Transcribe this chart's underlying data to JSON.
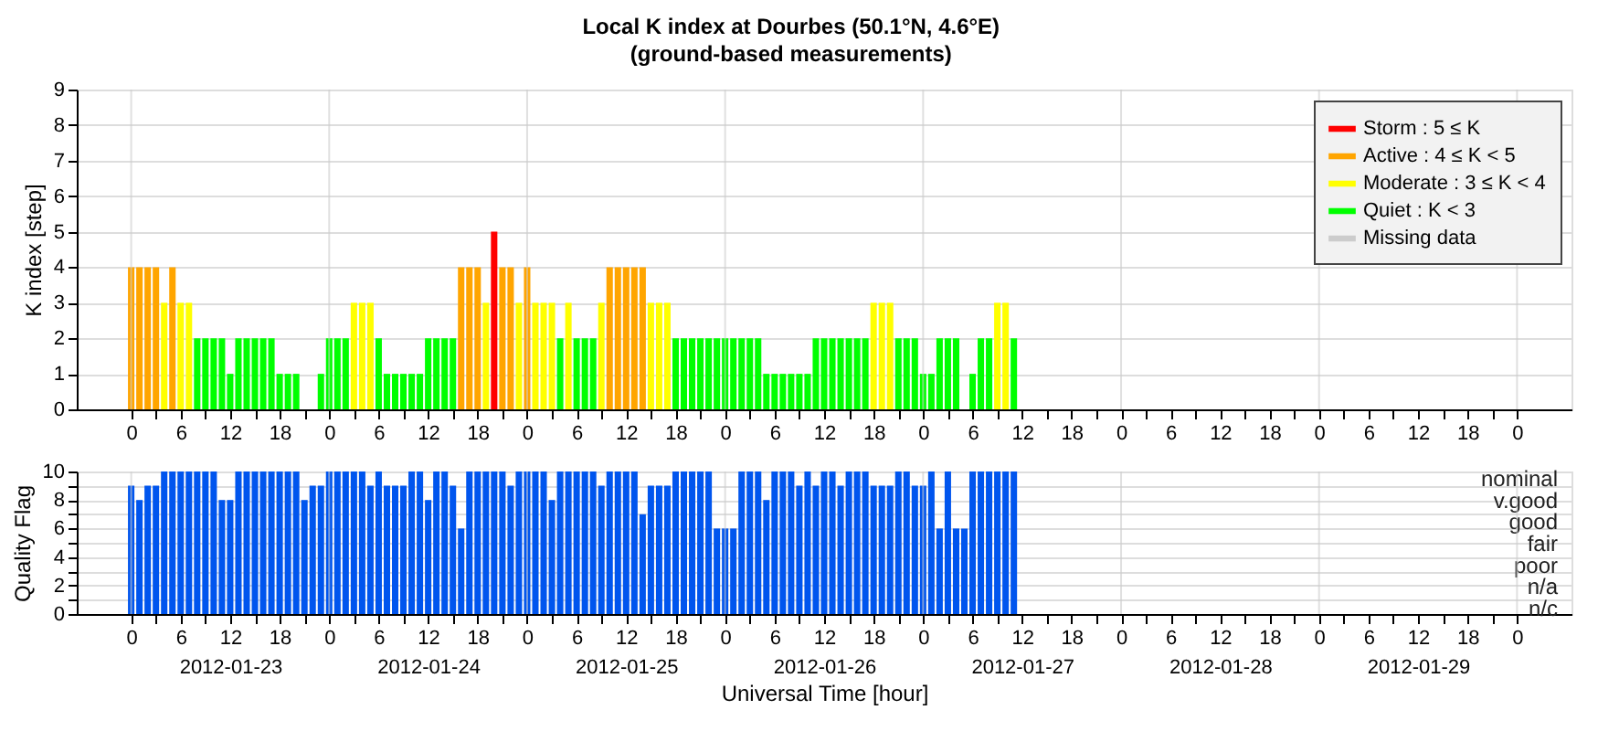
{
  "chart_data": [
    {
      "type": "bar",
      "title": "Local K index at Dourbes (50.1°N, 4.6°E)",
      "subtitle": "(ground-based measurements)",
      "ylabel": "K index [step]",
      "series": [
        {
          "name": "Storm : 5 ≤ K",
          "color": "#ff0000",
          "x": [
            "2012-01-24T20:00"
          ],
          "values": [
            5
          ]
        },
        {
          "name": "Active : 4 ≤ K < 5",
          "color": "#ffa500",
          "x": [
            "2012-01-23T00:00",
            "2012-01-23T01:00",
            "2012-01-23T02:00",
            "2012-01-23T03:00",
            "2012-01-23T05:00",
            "2012-01-24T16:00",
            "2012-01-24T17:00",
            "2012-01-24T18:00",
            "2012-01-24T21:00",
            "2012-01-24T22:00",
            "2012-01-25T00:00",
            "2012-01-25T10:00",
            "2012-01-25T11:00",
            "2012-01-25T12:00",
            "2012-01-25T13:00",
            "2012-01-25T14:00"
          ],
          "values": [
            4,
            4,
            4,
            4,
            4,
            4,
            4,
            4,
            4,
            4,
            4,
            4,
            4,
            4,
            4,
            4
          ]
        },
        {
          "name": "Moderate : 3 ≤ K < 4",
          "color": "#ffff00",
          "x": [
            "2012-01-23T04:00",
            "2012-01-23T06:00",
            "2012-01-23T07:00",
            "2012-01-24T03:00",
            "2012-01-24T04:00",
            "2012-01-24T05:00",
            "2012-01-24T19:00",
            "2012-01-24T23:00",
            "2012-01-25T01:00",
            "2012-01-25T02:00",
            "2012-01-25T03:00",
            "2012-01-25T05:00",
            "2012-01-25T09:00",
            "2012-01-25T15:00",
            "2012-01-25T16:00",
            "2012-01-25T17:00",
            "2012-01-26T18:00",
            "2012-01-26T19:00",
            "2012-01-26T20:00",
            "2012-01-27T09:00",
            "2012-01-27T10:00"
          ],
          "values": [
            3,
            3,
            3,
            3,
            3,
            3,
            3,
            3,
            3,
            3,
            3,
            3,
            3,
            3,
            3,
            3,
            3,
            3,
            3,
            3,
            3
          ]
        },
        {
          "name": "Quiet : K < 3",
          "color": "#00ff00",
          "x": [
            "2012-01-23T08:00",
            "2012-01-23T09:00",
            "2012-01-23T10:00",
            "2012-01-23T11:00",
            "2012-01-23T12:00",
            "2012-01-23T13:00",
            "2012-01-23T14:00",
            "2012-01-23T15:00",
            "2012-01-23T16:00",
            "2012-01-23T17:00",
            "2012-01-23T18:00",
            "2012-01-23T19:00",
            "2012-01-23T20:00",
            "2012-01-23T21:00",
            "2012-01-23T22:00",
            "2012-01-23T23:00",
            "2012-01-24T00:00",
            "2012-01-24T01:00",
            "2012-01-24T02:00",
            "2012-01-24T06:00",
            "2012-01-24T07:00",
            "2012-01-24T08:00",
            "2012-01-24T09:00",
            "2012-01-24T10:00",
            "2012-01-24T11:00",
            "2012-01-24T12:00",
            "2012-01-24T13:00",
            "2012-01-24T14:00",
            "2012-01-24T15:00",
            "2012-01-25T04:00",
            "2012-01-25T06:00",
            "2012-01-25T07:00",
            "2012-01-25T08:00",
            "2012-01-25T18:00",
            "2012-01-25T19:00",
            "2012-01-25T20:00",
            "2012-01-25T21:00",
            "2012-01-25T22:00",
            "2012-01-25T23:00",
            "2012-01-26T00:00",
            "2012-01-26T01:00",
            "2012-01-26T02:00",
            "2012-01-26T03:00",
            "2012-01-26T04:00",
            "2012-01-26T05:00",
            "2012-01-26T06:00",
            "2012-01-26T07:00",
            "2012-01-26T08:00",
            "2012-01-26T09:00",
            "2012-01-26T10:00",
            "2012-01-26T11:00",
            "2012-01-26T12:00",
            "2012-01-26T13:00",
            "2012-01-26T14:00",
            "2012-01-26T15:00",
            "2012-01-26T16:00",
            "2012-01-26T17:00",
            "2012-01-26T21:00",
            "2012-01-26T22:00",
            "2012-01-26T23:00",
            "2012-01-27T00:00",
            "2012-01-27T01:00",
            "2012-01-27T02:00",
            "2012-01-27T03:00",
            "2012-01-27T04:00",
            "2012-01-27T05:00",
            "2012-01-27T06:00",
            "2012-01-27T07:00",
            "2012-01-27T08:00",
            "2012-01-27T11:00"
          ],
          "values": [
            2,
            2,
            2,
            2,
            1,
            2,
            2,
            2,
            2,
            2,
            1,
            1,
            1,
            0,
            0,
            1,
            2,
            2,
            2,
            2,
            1,
            1,
            1,
            1,
            1,
            2,
            2,
            2,
            2,
            2,
            2,
            2,
            2,
            2,
            2,
            2,
            2,
            2,
            2,
            2,
            2,
            2,
            2,
            2,
            1,
            1,
            1,
            1,
            1,
            1,
            2,
            2,
            2,
            2,
            2,
            2,
            2,
            2,
            2,
            2,
            1,
            1,
            2,
            2,
            2,
            0,
            1,
            2,
            2,
            2
          ]
        },
        {
          "name": "Missing data",
          "color": "#cccccc"
        }
      ],
      "xlim": [
        "2012-01-22T17:24",
        "2012-01-30T06:36"
      ],
      "xticks": [
        {
          "value": "2012-01-23T00:00",
          "label": "0"
        },
        {
          "value": "2012-01-23T03:00",
          "label": null
        },
        {
          "value": "2012-01-23T06:00",
          "label": "6"
        },
        {
          "value": "2012-01-23T09:00",
          "label": null
        },
        {
          "value": "2012-01-23T12:00",
          "label": "12"
        },
        {
          "value": "2012-01-23T15:00",
          "label": null
        },
        {
          "value": "2012-01-23T18:00",
          "label": "18"
        },
        {
          "value": "2012-01-23T21:00",
          "label": null
        },
        {
          "value": "2012-01-24T00:00",
          "label": "0"
        },
        {
          "value": "2012-01-24T03:00",
          "label": null
        },
        {
          "value": "2012-01-24T06:00",
          "label": "6"
        },
        {
          "value": "2012-01-24T09:00",
          "label": null
        },
        {
          "value": "2012-01-24T12:00",
          "label": "12"
        },
        {
          "value": "2012-01-24T15:00",
          "label": null
        },
        {
          "value": "2012-01-24T18:00",
          "label": "18"
        },
        {
          "value": "2012-01-24T21:00",
          "label": null
        },
        {
          "value": "2012-01-25T00:00",
          "label": "0"
        },
        {
          "value": "2012-01-25T03:00",
          "label": null
        },
        {
          "value": "2012-01-25T06:00",
          "label": "6"
        },
        {
          "value": "2012-01-25T09:00",
          "label": null
        },
        {
          "value": "2012-01-25T12:00",
          "label": "12"
        },
        {
          "value": "2012-01-25T15:00",
          "label": null
        },
        {
          "value": "2012-01-25T18:00",
          "label": "18"
        },
        {
          "value": "2012-01-25T21:00",
          "label": null
        },
        {
          "value": "2012-01-26T00:00",
          "label": "0"
        },
        {
          "value": "2012-01-26T03:00",
          "label": null
        },
        {
          "value": "2012-01-26T06:00",
          "label": "6"
        },
        {
          "value": "2012-01-26T09:00",
          "label": null
        },
        {
          "value": "2012-01-26T12:00",
          "label": "12"
        },
        {
          "value": "2012-01-26T15:00",
          "label": null
        },
        {
          "value": "2012-01-26T18:00",
          "label": "18"
        },
        {
          "value": "2012-01-26T21:00",
          "label": null
        },
        {
          "value": "2012-01-27T00:00",
          "label": "0"
        },
        {
          "value": "2012-01-27T03:00",
          "label": null
        },
        {
          "value": "2012-01-27T06:00",
          "label": "6"
        },
        {
          "value": "2012-01-27T09:00",
          "label": null
        },
        {
          "value": "2012-01-27T12:00",
          "label": "12"
        },
        {
          "value": "2012-01-27T15:00",
          "label": null
        },
        {
          "value": "2012-01-27T18:00",
          "label": "18"
        },
        {
          "value": "2012-01-27T21:00",
          "label": null
        },
        {
          "value": "2012-01-28T00:00",
          "label": "0"
        },
        {
          "value": "2012-01-28T03:00",
          "label": null
        },
        {
          "value": "2012-01-28T06:00",
          "label": "6"
        },
        {
          "value": "2012-01-28T09:00",
          "label": null
        },
        {
          "value": "2012-01-28T12:00",
          "label": "12"
        },
        {
          "value": "2012-01-28T15:00",
          "label": null
        },
        {
          "value": "2012-01-28T18:00",
          "label": "18"
        },
        {
          "value": "2012-01-28T21:00",
          "label": null
        },
        {
          "value": "2012-01-29T00:00",
          "label": "0"
        },
        {
          "value": "2012-01-29T03:00",
          "label": null
        },
        {
          "value": "2012-01-29T06:00",
          "label": "6"
        },
        {
          "value": "2012-01-29T09:00",
          "label": null
        },
        {
          "value": "2012-01-29T12:00",
          "label": "12"
        },
        {
          "value": "2012-01-29T15:00",
          "label": null
        },
        {
          "value": "2012-01-29T18:00",
          "label": "18"
        },
        {
          "value": "2012-01-29T21:00",
          "label": null
        },
        {
          "value": "2012-01-30T00:00",
          "label": "0"
        }
      ],
      "ylim": [
        0,
        9
      ],
      "yticks": [
        0,
        1,
        2,
        3,
        4,
        5,
        6,
        7,
        8,
        9
      ],
      "grid": "y",
      "legend": "top right",
      "ref_lines": [
        {
          "axis": "x",
          "value": "2012-01-23",
          "color": "#cccccc"
        },
        {
          "axis": "x",
          "value": "2012-01-24",
          "color": "#cccccc"
        },
        {
          "axis": "x",
          "value": "2012-01-25",
          "color": "#cccccc"
        },
        {
          "axis": "x",
          "value": "2012-01-26",
          "color": "#cccccc"
        },
        {
          "axis": "x",
          "value": "2012-01-27",
          "color": "#cccccc"
        },
        {
          "axis": "x",
          "value": "2012-01-28",
          "color": "#cccccc"
        },
        {
          "axis": "x",
          "value": "2012-01-29",
          "color": "#cccccc"
        },
        {
          "axis": "x",
          "value": "2012-01-30",
          "color": "#cccccc"
        }
      ]
    },
    {
      "type": "bar",
      "ylabel": "Quality Flag",
      "xlabel": "Universal Time [hour]",
      "x": [
        "2012-01-23T00:00",
        "2012-01-23T01:00",
        "2012-01-23T02:00",
        "2012-01-23T03:00",
        "2012-01-23T04:00",
        "2012-01-23T05:00",
        "2012-01-23T06:00",
        "2012-01-23T07:00",
        "2012-01-23T08:00",
        "2012-01-23T09:00",
        "2012-01-23T10:00",
        "2012-01-23T11:00",
        "2012-01-23T12:00",
        "2012-01-23T13:00",
        "2012-01-23T14:00",
        "2012-01-23T15:00",
        "2012-01-23T16:00",
        "2012-01-23T17:00",
        "2012-01-23T18:00",
        "2012-01-23T19:00",
        "2012-01-23T20:00",
        "2012-01-23T21:00",
        "2012-01-23T22:00",
        "2012-01-23T23:00",
        "2012-01-24T00:00",
        "2012-01-24T01:00",
        "2012-01-24T02:00",
        "2012-01-24T03:00",
        "2012-01-24T04:00",
        "2012-01-24T05:00",
        "2012-01-24T06:00",
        "2012-01-24T07:00",
        "2012-01-24T08:00",
        "2012-01-24T09:00",
        "2012-01-24T10:00",
        "2012-01-24T11:00",
        "2012-01-24T12:00",
        "2012-01-24T13:00",
        "2012-01-24T14:00",
        "2012-01-24T15:00",
        "2012-01-24T16:00",
        "2012-01-24T17:00",
        "2012-01-24T18:00",
        "2012-01-24T19:00",
        "2012-01-24T20:00",
        "2012-01-24T21:00",
        "2012-01-24T22:00",
        "2012-01-24T23:00",
        "2012-01-25T00:00",
        "2012-01-25T01:00",
        "2012-01-25T02:00",
        "2012-01-25T03:00",
        "2012-01-25T04:00",
        "2012-01-25T05:00",
        "2012-01-25T06:00",
        "2012-01-25T07:00",
        "2012-01-25T08:00",
        "2012-01-25T09:00",
        "2012-01-25T10:00",
        "2012-01-25T11:00",
        "2012-01-25T12:00",
        "2012-01-25T13:00",
        "2012-01-25T14:00",
        "2012-01-25T15:00",
        "2012-01-25T16:00",
        "2012-01-25T17:00",
        "2012-01-25T18:00",
        "2012-01-25T19:00",
        "2012-01-25T20:00",
        "2012-01-25T21:00",
        "2012-01-25T22:00",
        "2012-01-25T23:00",
        "2012-01-26T00:00",
        "2012-01-26T01:00",
        "2012-01-26T02:00",
        "2012-01-26T03:00",
        "2012-01-26T04:00",
        "2012-01-26T05:00",
        "2012-01-26T06:00",
        "2012-01-26T07:00",
        "2012-01-26T08:00",
        "2012-01-26T09:00",
        "2012-01-26T10:00",
        "2012-01-26T11:00",
        "2012-01-26T12:00",
        "2012-01-26T13:00",
        "2012-01-26T14:00",
        "2012-01-26T15:00",
        "2012-01-26T16:00",
        "2012-01-26T17:00",
        "2012-01-26T18:00",
        "2012-01-26T19:00",
        "2012-01-26T20:00",
        "2012-01-26T21:00",
        "2012-01-26T22:00",
        "2012-01-26T23:00",
        "2012-01-27T00:00",
        "2012-01-27T01:00",
        "2012-01-27T02:00",
        "2012-01-27T03:00",
        "2012-01-27T04:00",
        "2012-01-27T05:00",
        "2012-01-27T06:00",
        "2012-01-27T07:00",
        "2012-01-27T08:00",
        "2012-01-27T09:00",
        "2012-01-27T10:00",
        "2012-01-27T11:00"
      ],
      "series": [
        {
          "color": "#0055ee",
          "values": [
            9,
            8,
            9,
            9,
            10,
            10,
            10,
            10,
            10,
            10,
            10,
            8,
            8,
            10,
            10,
            10,
            10,
            10,
            10,
            10,
            10,
            8,
            9,
            9,
            10,
            10,
            10,
            10,
            10,
            9,
            10,
            9,
            9,
            9,
            10,
            10,
            8,
            10,
            10,
            9,
            6,
            10,
            10,
            10,
            10,
            10,
            9,
            10,
            10,
            10,
            10,
            8,
            10,
            10,
            10,
            10,
            10,
            9,
            10,
            10,
            10,
            10,
            7,
            9,
            9,
            9,
            10,
            10,
            10,
            10,
            10,
            6,
            6,
            6,
            10,
            10,
            10,
            8,
            10,
            10,
            10,
            9,
            10,
            9,
            10,
            10,
            9,
            10,
            10,
            10,
            9,
            9,
            9,
            10,
            10,
            9,
            9,
            10,
            6,
            10,
            6,
            6,
            10,
            10,
            10,
            10,
            10,
            10
          ]
        }
      ],
      "xlim": [
        "2012-01-22T17:24",
        "2012-01-30T06:36"
      ],
      "xticks": [
        {
          "value": "2012-01-23T00:00",
          "label": "0"
        },
        {
          "value": "2012-01-23T03:00",
          "label": null
        },
        {
          "value": "2012-01-23T06:00",
          "label": "6"
        },
        {
          "value": "2012-01-23T09:00",
          "label": null
        },
        {
          "value": "2012-01-23T12:00",
          "label": "12\n2012-01-23"
        },
        {
          "value": "2012-01-23T15:00",
          "label": null
        },
        {
          "value": "2012-01-23T18:00",
          "label": "18"
        },
        {
          "value": "2012-01-23T21:00",
          "label": null
        },
        {
          "value": "2012-01-24T00:00",
          "label": "0"
        },
        {
          "value": "2012-01-24T03:00",
          "label": null
        },
        {
          "value": "2012-01-24T06:00",
          "label": "6"
        },
        {
          "value": "2012-01-24T09:00",
          "label": null
        },
        {
          "value": "2012-01-24T12:00",
          "label": "12\n2012-01-24"
        },
        {
          "value": "2012-01-24T15:00",
          "label": null
        },
        {
          "value": "2012-01-24T18:00",
          "label": "18"
        },
        {
          "value": "2012-01-24T21:00",
          "label": null
        },
        {
          "value": "2012-01-25T00:00",
          "label": "0"
        },
        {
          "value": "2012-01-25T03:00",
          "label": null
        },
        {
          "value": "2012-01-25T06:00",
          "label": "6"
        },
        {
          "value": "2012-01-25T09:00",
          "label": null
        },
        {
          "value": "2012-01-25T12:00",
          "label": "12\n2012-01-25"
        },
        {
          "value": "2012-01-25T15:00",
          "label": null
        },
        {
          "value": "2012-01-25T18:00",
          "label": "18"
        },
        {
          "value": "2012-01-25T21:00",
          "label": null
        },
        {
          "value": "2012-01-26T00:00",
          "label": "0"
        },
        {
          "value": "2012-01-26T03:00",
          "label": null
        },
        {
          "value": "2012-01-26T06:00",
          "label": "6"
        },
        {
          "value": "2012-01-26T09:00",
          "label": null
        },
        {
          "value": "2012-01-26T12:00",
          "label": "12\n2012-01-26"
        },
        {
          "value": "2012-01-26T15:00",
          "label": null
        },
        {
          "value": "2012-01-26T18:00",
          "label": "18"
        },
        {
          "value": "2012-01-26T21:00",
          "label": null
        },
        {
          "value": "2012-01-27T00:00",
          "label": "0"
        },
        {
          "value": "2012-01-27T03:00",
          "label": null
        },
        {
          "value": "2012-01-27T06:00",
          "label": "6"
        },
        {
          "value": "2012-01-27T09:00",
          "label": null
        },
        {
          "value": "2012-01-27T12:00",
          "label": "12\n2012-01-27"
        },
        {
          "value": "2012-01-27T15:00",
          "label": null
        },
        {
          "value": "2012-01-27T18:00",
          "label": "18"
        },
        {
          "value": "2012-01-27T21:00",
          "label": null
        },
        {
          "value": "2012-01-28T00:00",
          "label": "0"
        },
        {
          "value": "2012-01-28T03:00",
          "label": null
        },
        {
          "value": "2012-01-28T06:00",
          "label": "6"
        },
        {
          "value": "2012-01-28T09:00",
          "label": null
        },
        {
          "value": "2012-01-28T12:00",
          "label": "12\n2012-01-28"
        },
        {
          "value": "2012-01-28T15:00",
          "label": null
        },
        {
          "value": "2012-01-28T18:00",
          "label": "18"
        },
        {
          "value": "2012-01-28T21:00",
          "label": null
        },
        {
          "value": "2012-01-29T00:00",
          "label": "0"
        },
        {
          "value": "2012-01-29T03:00",
          "label": null
        },
        {
          "value": "2012-01-29T06:00",
          "label": "6"
        },
        {
          "value": "2012-01-29T09:00",
          "label": null
        },
        {
          "value": "2012-01-29T12:00",
          "label": "12\n2012-01-29"
        },
        {
          "value": "2012-01-29T15:00",
          "label": null
        },
        {
          "value": "2012-01-29T18:00",
          "label": "18"
        },
        {
          "value": "2012-01-29T21:00",
          "label": null
        },
        {
          "value": "2012-01-30T00:00",
          "label": "0"
        }
      ],
      "ylim": [
        0,
        10
      ],
      "yticks": [
        0,
        {
          "value": 1,
          "label": null
        },
        2,
        {
          "value": 3,
          "label": null
        },
        4,
        {
          "value": 5,
          "label": null
        },
        6,
        {
          "value": 7,
          "label": null
        },
        8,
        {
          "value": 9,
          "label": null
        },
        10
      ],
      "grid": "y",
      "y2_categories": [
        "nominal",
        "v.good",
        "good",
        "fair",
        "poor",
        "n/a",
        "n/c"
      ],
      "ref_lines": [
        {
          "axis": "x",
          "value": "2012-01-23",
          "color": "#cccccc"
        },
        {
          "axis": "x",
          "value": "2012-01-24",
          "color": "#cccccc"
        },
        {
          "axis": "x",
          "value": "2012-01-25",
          "color": "#cccccc"
        },
        {
          "axis": "x",
          "value": "2012-01-26",
          "color": "#cccccc"
        },
        {
          "axis": "x",
          "value": "2012-01-27",
          "color": "#cccccc"
        },
        {
          "axis": "x",
          "value": "2012-01-28",
          "color": "#cccccc"
        },
        {
          "axis": "x",
          "value": "2012-01-29",
          "color": "#cccccc"
        },
        {
          "axis": "x",
          "value": "2012-01-30",
          "color": "#cccccc"
        }
      ]
    }
  ]
}
